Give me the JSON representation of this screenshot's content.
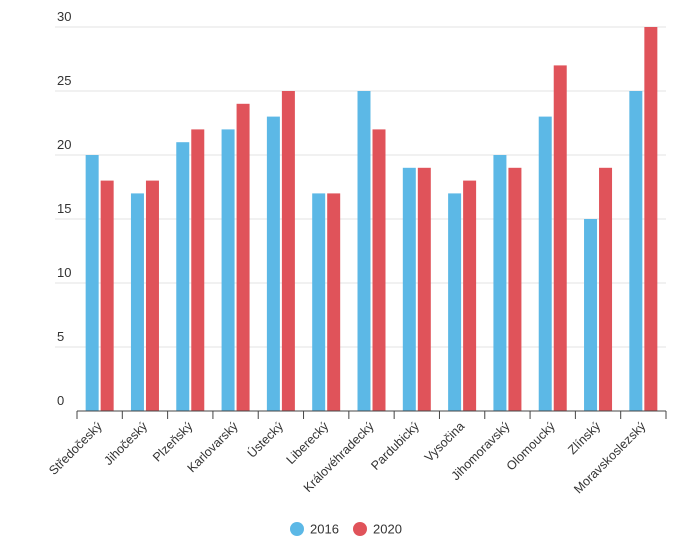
{
  "chart_data": {
    "type": "bar",
    "categories": [
      "Středočeský",
      "Jihočeský",
      "Plzeňský",
      "Karlovarský",
      "Ústecký",
      "Liberecký",
      "Královéhradecký",
      "Pardubický",
      "Vysočina",
      "Jihomoravský",
      "Olomoucký",
      "Zlínský",
      "Moravskoslezský"
    ],
    "series": [
      {
        "name": "2016",
        "color": "#5cb8e6",
        "values": [
          20,
          17,
          21,
          22,
          23,
          17,
          25,
          19,
          17,
          20,
          23,
          15,
          25
        ]
      },
      {
        "name": "2020",
        "color": "#e0535a",
        "values": [
          18,
          18,
          22,
          24,
          25,
          17,
          22,
          19,
          18,
          19,
          27,
          19,
          30
        ]
      }
    ],
    "yticks": [
      0,
      5,
      10,
      15,
      20,
      25,
      30
    ],
    "ylim": [
      0,
      30
    ],
    "grid": true,
    "legend": "bottom-center"
  }
}
